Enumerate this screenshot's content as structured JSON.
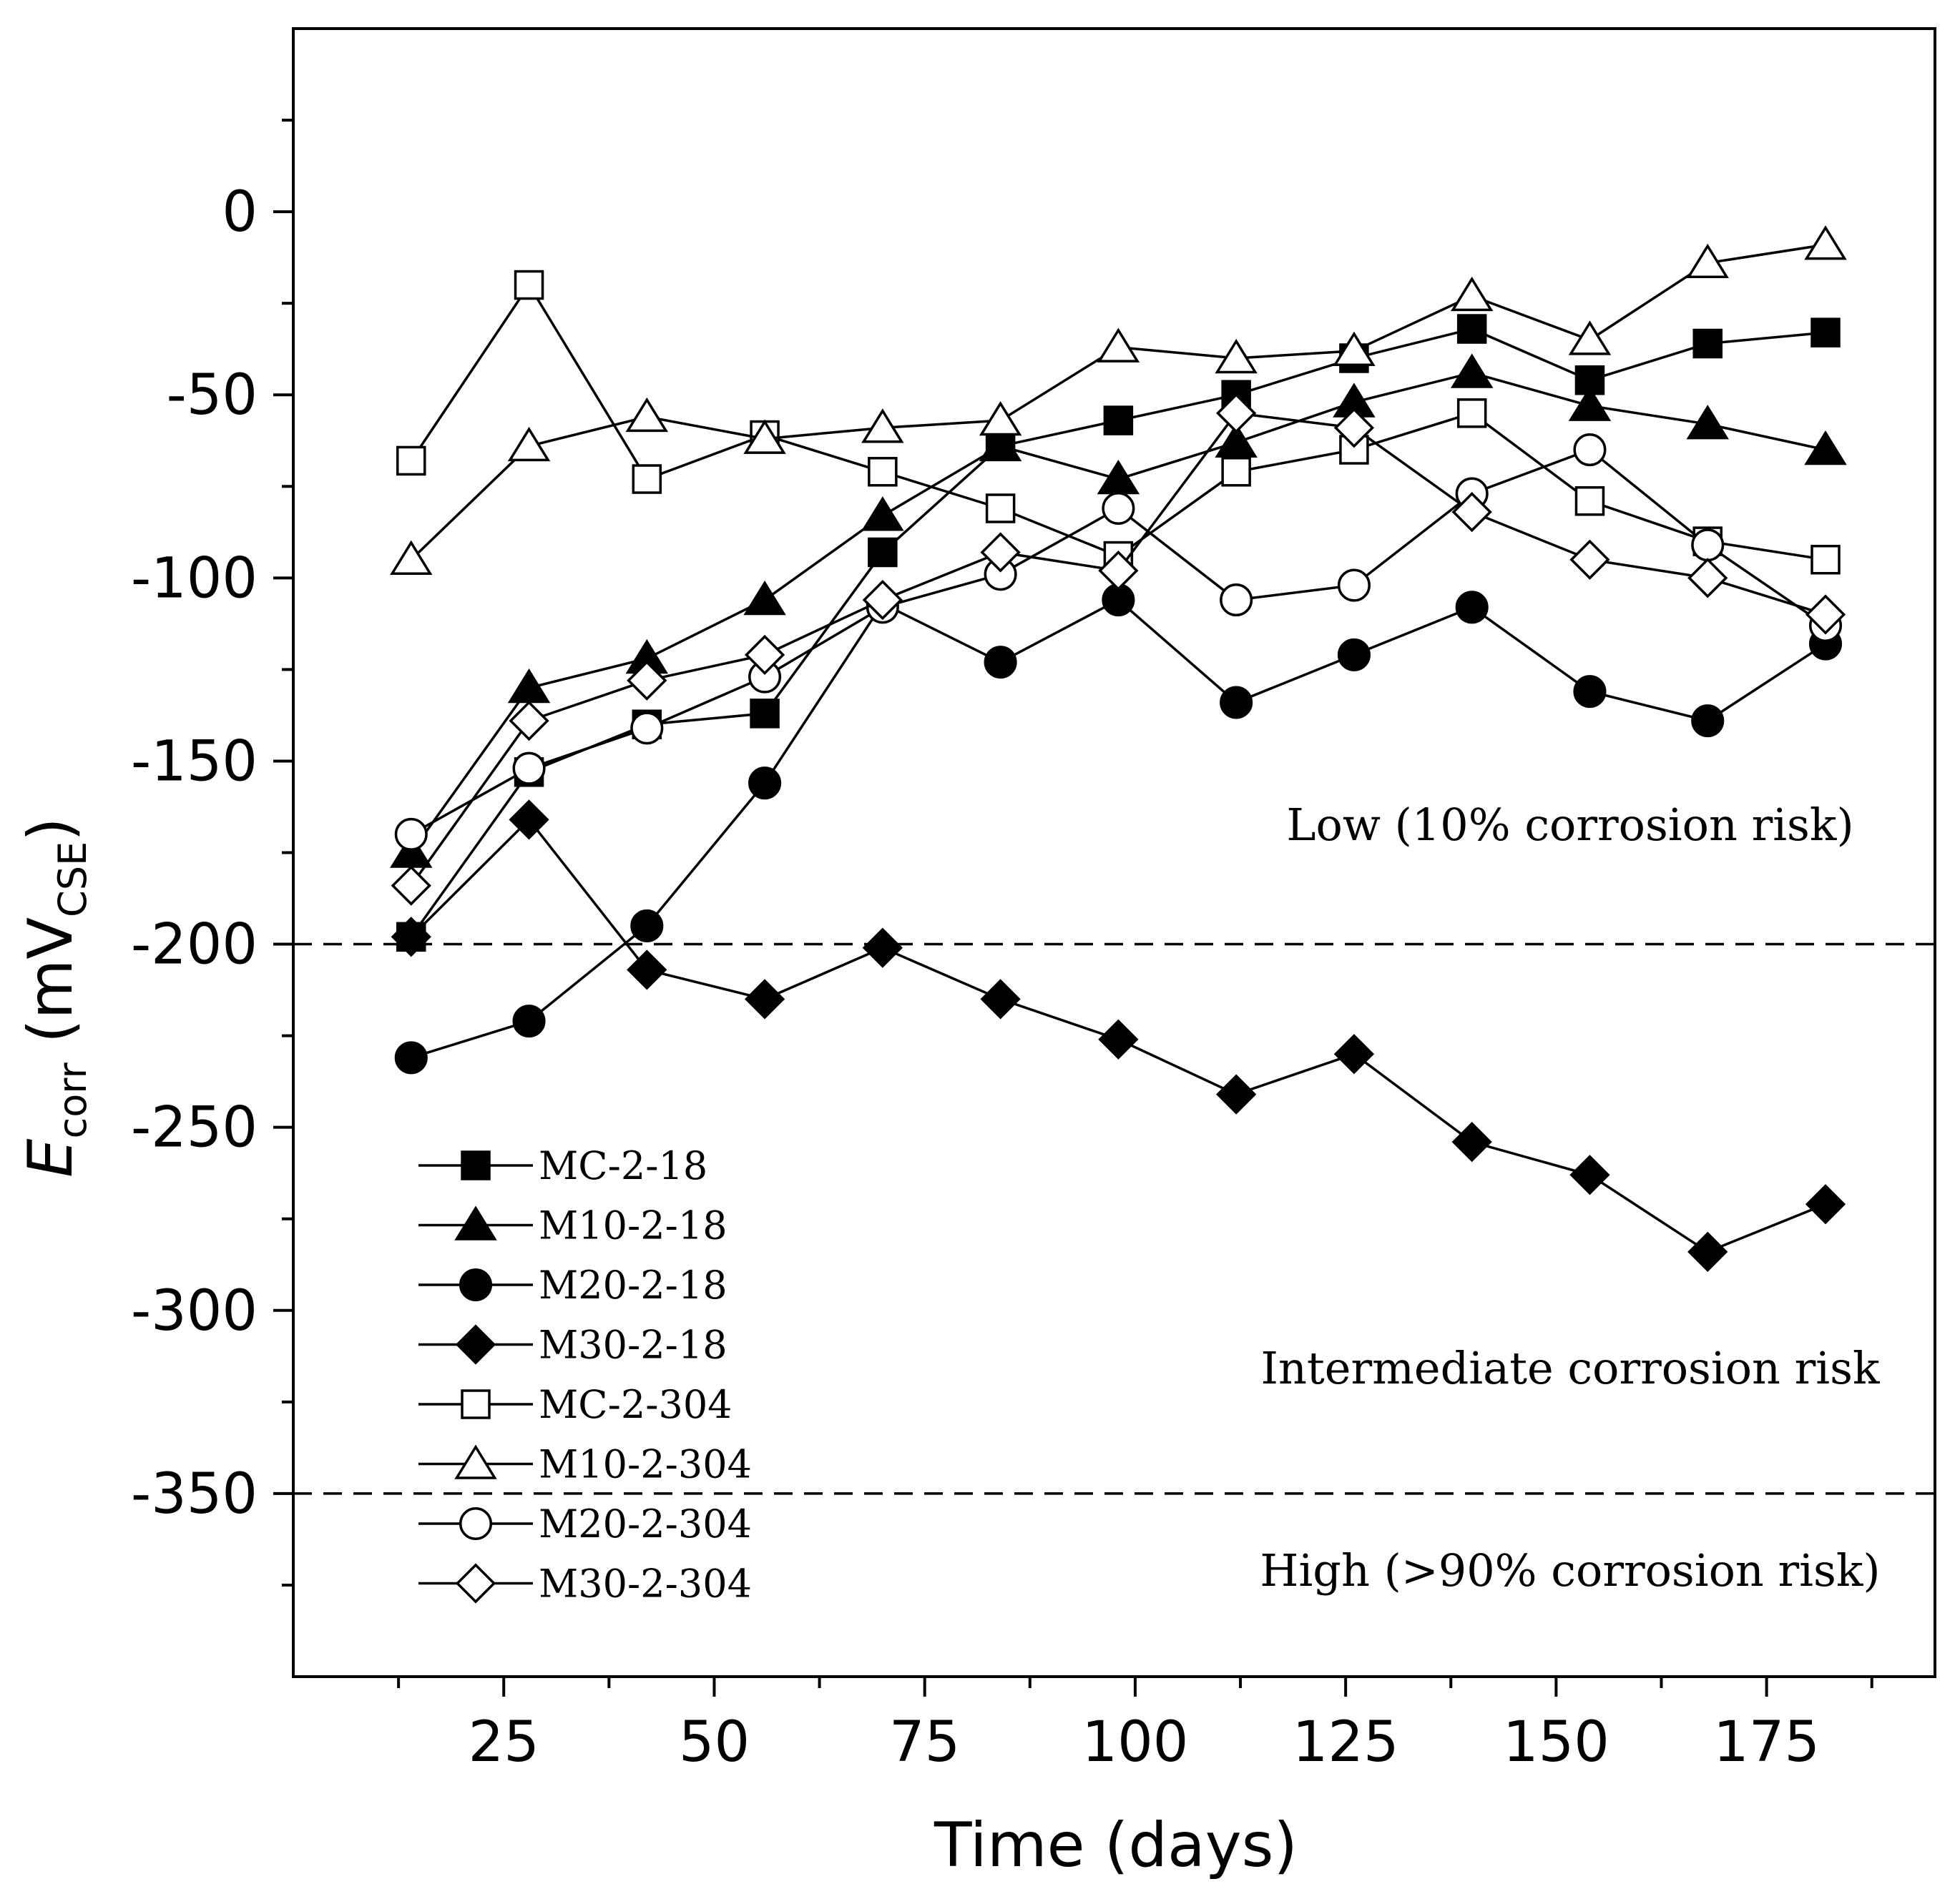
{
  "chart_data": {
    "type": "line",
    "title": "",
    "xlabel": "Time (days)",
    "ylabel_main": "E",
    "ylabel_sub": "corr",
    "ylabel_unit_open": " (mV",
    "ylabel_unit_sub": "CSE",
    "ylabel_unit_close": ")",
    "xlim": [
      0,
      195
    ],
    "ylim": [
      -400,
      50
    ],
    "x_ticks": [
      25,
      50,
      75,
      100,
      125,
      150,
      175
    ],
    "y_ticks": [
      0,
      -50,
      -100,
      -150,
      -200,
      -250,
      -300,
      -350
    ],
    "x_tick_labels": [
      "25",
      "50",
      "75",
      "100",
      "125",
      "150",
      "175"
    ],
    "y_tick_labels": [
      "0",
      "-50",
      "-100",
      "-150",
      "-200",
      "-250",
      "-300",
      "-350"
    ],
    "x": [
      14,
      28,
      42,
      56,
      70,
      84,
      98,
      112,
      126,
      140,
      154,
      168,
      182
    ],
    "reference_lines": [
      {
        "y": -200,
        "style": "dashed"
      },
      {
        "y": -350,
        "style": "dashed"
      }
    ],
    "annotations": [
      {
        "text": "Low (10% corrosion risk)"
      },
      {
        "text": "Intermediate corrosion risk"
      },
      {
        "text": "High (>90% corrosion risk)"
      }
    ],
    "legend_position": "lower-left",
    "series": [
      {
        "name": "MC-2-18",
        "marker": "square",
        "filled": true,
        "values": [
          -198,
          -153,
          -140,
          -137,
          -93,
          -64,
          -57,
          -50,
          -40,
          -32,
          -46,
          -36,
          -33
        ]
      },
      {
        "name": "M10-2-18",
        "marker": "triangle",
        "filled": true,
        "values": [
          -175,
          -130,
          -122,
          -106,
          -83,
          -64,
          -73,
          -63,
          -52,
          -44,
          -53,
          -58,
          -65
        ]
      },
      {
        "name": "M20-2-18",
        "marker": "circle",
        "filled": true,
        "values": [
          -231,
          -221,
          -195,
          -156,
          -107,
          -123,
          -106,
          -134,
          -121,
          -108,
          -131,
          -139,
          -118
        ]
      },
      {
        "name": "M30-2-18",
        "marker": "diamond",
        "filled": true,
        "values": [
          -198,
          -166,
          -207,
          -215,
          -201,
          -215,
          -226,
          -241,
          -230,
          -254,
          -263,
          -284,
          -271
        ]
      },
      {
        "name": "MC-2-304",
        "marker": "square",
        "filled": false,
        "values": [
          -68,
          -20,
          -73,
          -61,
          -71,
          -81,
          -94,
          -71,
          -65,
          -55,
          -79,
          -90,
          -95
        ]
      },
      {
        "name": "M10-2-304",
        "marker": "triangle",
        "filled": false,
        "values": [
          -95,
          -64,
          -56,
          -62,
          -59,
          -57,
          -37,
          -40,
          -38,
          -23,
          -35,
          -14,
          -9
        ]
      },
      {
        "name": "M20-2-304",
        "marker": "circle",
        "filled": false,
        "values": [
          -170,
          -152,
          -141,
          -127,
          -108,
          -99,
          -81,
          -106,
          -102,
          -77,
          -65,
          -91,
          -113
        ]
      },
      {
        "name": "M30-2-304",
        "marker": "diamond",
        "filled": false,
        "values": [
          -184,
          -139,
          -128,
          -121,
          -106,
          -93,
          -98,
          -55,
          -59,
          -82,
          -95,
          -100,
          -110
        ]
      }
    ]
  }
}
